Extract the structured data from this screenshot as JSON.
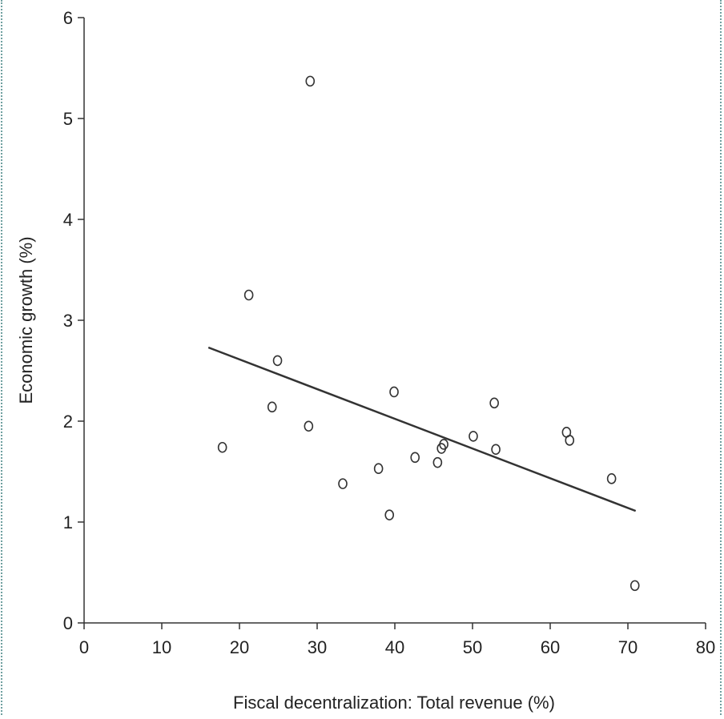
{
  "chart_data": {
    "type": "scatter",
    "title": "",
    "xlabel": "Fiscal decentralization: Total revenue (%)",
    "ylabel": "Economic growth (%)",
    "xlim": [
      0,
      80
    ],
    "ylim": [
      0,
      6
    ],
    "x_ticks": [
      "0",
      "10",
      "20",
      "30",
      "40",
      "50",
      "60",
      "70",
      "80"
    ],
    "y_ticks": [
      "0",
      "1",
      "2",
      "3",
      "4",
      "5",
      "6"
    ],
    "grid": false,
    "legend": "none",
    "marker": "open-circle",
    "points": [
      {
        "x": 17.8,
        "y": 1.74
      },
      {
        "x": 21.2,
        "y": 3.25
      },
      {
        "x": 24.2,
        "y": 2.14
      },
      {
        "x": 24.9,
        "y": 2.6
      },
      {
        "x": 28.9,
        "y": 1.95
      },
      {
        "x": 29.1,
        "y": 5.37
      },
      {
        "x": 33.3,
        "y": 1.38
      },
      {
        "x": 37.9,
        "y": 1.53
      },
      {
        "x": 39.3,
        "y": 1.07
      },
      {
        "x": 39.9,
        "y": 2.29
      },
      {
        "x": 42.6,
        "y": 1.64
      },
      {
        "x": 45.5,
        "y": 1.59
      },
      {
        "x": 46.0,
        "y": 1.73
      },
      {
        "x": 46.3,
        "y": 1.77
      },
      {
        "x": 50.1,
        "y": 1.85
      },
      {
        "x": 52.8,
        "y": 2.18
      },
      {
        "x": 53.0,
        "y": 1.72
      },
      {
        "x": 62.1,
        "y": 1.89
      },
      {
        "x": 62.5,
        "y": 1.81
      },
      {
        "x": 67.9,
        "y": 1.43
      },
      {
        "x": 70.9,
        "y": 0.37
      }
    ],
    "trendline": {
      "x": [
        16,
        71
      ],
      "y": [
        2.73,
        1.11
      ]
    }
  }
}
